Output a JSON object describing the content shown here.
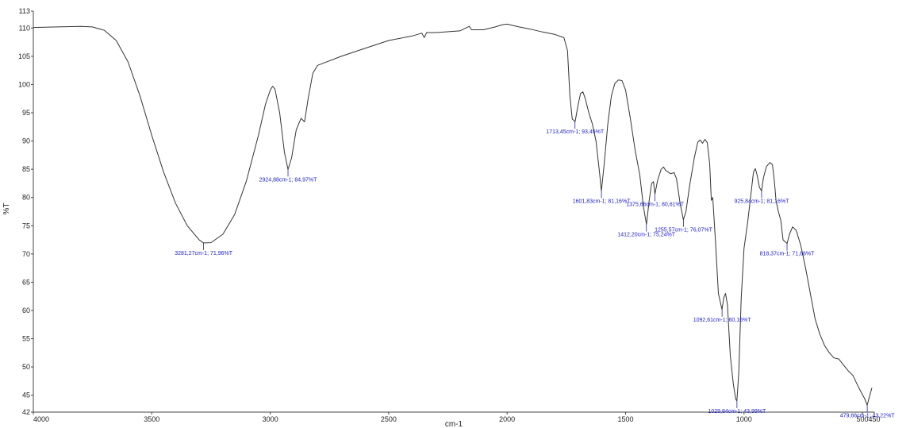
{
  "chart_data": {
    "type": "line",
    "title": "",
    "xlabel": "cm-1",
    "ylabel": "%T",
    "xlim": [
      4000,
      450
    ],
    "ylim": [
      42,
      113
    ],
    "grid": false,
    "x_ticks": [
      4000,
      3500,
      3000,
      2500,
      2000,
      1500,
      1000,
      500,
      450
    ],
    "x_tick_labels": [
      "4000",
      "3500",
      "3000",
      "2500",
      "2000",
      "1500",
      "1000",
      "500",
      "450"
    ],
    "y_ticks": [
      42,
      45,
      50,
      55,
      60,
      65,
      70,
      75,
      80,
      85,
      90,
      95,
      100,
      105,
      110,
      113
    ],
    "y_tick_labels": [
      "42",
      "45",
      "50",
      "55",
      "60",
      "65",
      "70",
      "75",
      "80",
      "85",
      "90",
      "95",
      "100",
      "105",
      "110",
      "113"
    ],
    "series": [
      {
        "color": "#333333",
        "points": [
          [
            4000,
            110.1
          ],
          [
            3900,
            110.2
          ],
          [
            3800,
            110.3
          ],
          [
            3750,
            110.2
          ],
          [
            3700,
            109.6
          ],
          [
            3650,
            107.8
          ],
          [
            3600,
            104.0
          ],
          [
            3550,
            98.0
          ],
          [
            3500,
            91.0
          ],
          [
            3450,
            84.5
          ],
          [
            3400,
            79.0
          ],
          [
            3350,
            75.0
          ],
          [
            3300,
            72.5
          ],
          [
            3281,
            71.96
          ],
          [
            3250,
            72.0
          ],
          [
            3200,
            73.5
          ],
          [
            3150,
            77.0
          ],
          [
            3100,
            83.0
          ],
          [
            3050,
            91.0
          ],
          [
            3020,
            96.5
          ],
          [
            3000,
            99.0
          ],
          [
            2990,
            99.7
          ],
          [
            2980,
            99.2
          ],
          [
            2960,
            95.0
          ],
          [
            2940,
            88.0
          ],
          [
            2925,
            84.97
          ],
          [
            2910,
            87.0
          ],
          [
            2890,
            92.0
          ],
          [
            2870,
            94.0
          ],
          [
            2855,
            93.4
          ],
          [
            2840,
            97.5
          ],
          [
            2820,
            102.0
          ],
          [
            2800,
            103.4
          ],
          [
            2700,
            105.0
          ],
          [
            2600,
            106.4
          ],
          [
            2500,
            107.8
          ],
          [
            2400,
            108.6
          ],
          [
            2360,
            109.1
          ],
          [
            2350,
            108.3
          ],
          [
            2340,
            109.2
          ],
          [
            2300,
            109.2
          ],
          [
            2200,
            109.5
          ],
          [
            2160,
            110.3
          ],
          [
            2150,
            109.7
          ],
          [
            2100,
            109.7
          ],
          [
            2050,
            110.2
          ],
          [
            2020,
            110.6
          ],
          [
            2000,
            110.7
          ],
          [
            1950,
            110.2
          ],
          [
            1900,
            109.8
          ],
          [
            1850,
            109.3
          ],
          [
            1800,
            108.9
          ],
          [
            1760,
            108.3
          ],
          [
            1745,
            106.0
          ],
          [
            1735,
            98.0
          ],
          [
            1725,
            93.9
          ],
          [
            1713,
            93.45
          ],
          [
            1700,
            96.5
          ],
          [
            1690,
            98.4
          ],
          [
            1680,
            98.7
          ],
          [
            1670,
            97.5
          ],
          [
            1655,
            95.0
          ],
          [
            1640,
            93.0
          ],
          [
            1625,
            90.0
          ],
          [
            1610,
            84.5
          ],
          [
            1602,
            81.16
          ],
          [
            1590,
            86.0
          ],
          [
            1575,
            93.0
          ],
          [
            1560,
            98.0
          ],
          [
            1545,
            100.2
          ],
          [
            1530,
            100.8
          ],
          [
            1515,
            100.7
          ],
          [
            1500,
            99.0
          ],
          [
            1480,
            94.0
          ],
          [
            1460,
            88.5
          ],
          [
            1440,
            84.0
          ],
          [
            1425,
            78.5
          ],
          [
            1412,
            75.24
          ],
          [
            1400,
            79.5
          ],
          [
            1390,
            82.5
          ],
          [
            1382,
            82.8
          ],
          [
            1376,
            80.61
          ],
          [
            1365,
            83.0
          ],
          [
            1350,
            85.0
          ],
          [
            1340,
            85.4
          ],
          [
            1330,
            84.8
          ],
          [
            1310,
            84.2
          ],
          [
            1295,
            84.4
          ],
          [
            1285,
            83.3
          ],
          [
            1270,
            79.0
          ],
          [
            1256,
            76.07
          ],
          [
            1245,
            77.5
          ],
          [
            1230,
            82.0
          ],
          [
            1210,
            87.0
          ],
          [
            1195,
            89.8
          ],
          [
            1185,
            90.2
          ],
          [
            1175,
            89.6
          ],
          [
            1165,
            90.3
          ],
          [
            1155,
            89.7
          ],
          [
            1145,
            86.0
          ],
          [
            1138,
            79.5
          ],
          [
            1132,
            80.0
          ],
          [
            1120,
            72.0
          ],
          [
            1108,
            63.0
          ],
          [
            1093,
            60.16
          ],
          [
            1085,
            62.3
          ],
          [
            1078,
            63.0
          ],
          [
            1070,
            61.0
          ],
          [
            1058,
            52.0
          ],
          [
            1045,
            47.0
          ],
          [
            1035,
            44.3
          ],
          [
            1030,
            43.99
          ],
          [
            1022,
            49.0
          ],
          [
            1012,
            62.0
          ],
          [
            1000,
            71.0
          ],
          [
            985,
            75.5
          ],
          [
            975,
            79.0
          ],
          [
            960,
            84.5
          ],
          [
            952,
            85.1
          ],
          [
            945,
            84.0
          ],
          [
            935,
            81.8
          ],
          [
            926,
            81.16
          ],
          [
            918,
            83.5
          ],
          [
            905,
            85.5
          ],
          [
            890,
            86.2
          ],
          [
            880,
            85.8
          ],
          [
            872,
            83.0
          ],
          [
            865,
            79.5
          ],
          [
            855,
            77.5
          ],
          [
            845,
            76.0
          ],
          [
            835,
            72.5
          ],
          [
            818,
            71.86
          ],
          [
            808,
            73.5
          ],
          [
            795,
            74.8
          ],
          [
            780,
            74.2
          ],
          [
            760,
            71.5
          ],
          [
            740,
            67.5
          ],
          [
            720,
            63.0
          ],
          [
            700,
            58.5
          ],
          [
            680,
            55.8
          ],
          [
            660,
            53.8
          ],
          [
            640,
            52.5
          ],
          [
            620,
            51.6
          ],
          [
            600,
            51.4
          ],
          [
            585,
            50.6
          ],
          [
            560,
            49.3
          ],
          [
            540,
            48.5
          ],
          [
            520,
            46.7
          ],
          [
            505,
            45.5
          ],
          [
            490,
            44.3
          ],
          [
            480,
            43.22
          ],
          [
            470,
            44.8
          ],
          [
            460,
            46.3
          ]
        ]
      }
    ],
    "annotations": [
      {
        "x": 3281.27,
        "y": 71.96,
        "text": "3281,27cm-1; 71,96%T"
      },
      {
        "x": 2924.88,
        "y": 84.97,
        "text": "2924,88cm-1; 84,97%T"
      },
      {
        "x": 1713.45,
        "y": 93.45,
        "text": "1713,45cm-1; 93,45%T"
      },
      {
        "x": 1601.83,
        "y": 81.16,
        "text": "1601,83cm-1; 81,16%T"
      },
      {
        "x": 1375.66,
        "y": 80.61,
        "text": "1375,66cm-1; 80,61%T"
      },
      {
        "x": 1412.2,
        "y": 75.24,
        "text": "1412,20cm-1; 75,24%T"
      },
      {
        "x": 1255.57,
        "y": 76.07,
        "text": "1255,57cm-1; 76,07%T"
      },
      {
        "x": 925.84,
        "y": 81.16,
        "text": "925,84cm-1; 81,16%T"
      },
      {
        "x": 818.37,
        "y": 71.86,
        "text": "818,37cm-1; 71,86%T"
      },
      {
        "x": 1092.61,
        "y": 60.16,
        "text": "1092,61cm-1; 60,16%T"
      },
      {
        "x": 1029.84,
        "y": 43.99,
        "text": "1029,84cm-1; 43,99%T"
      },
      {
        "x": 479.66,
        "y": 43.22,
        "text": "479,66cm-1; 43,22%T"
      }
    ]
  }
}
